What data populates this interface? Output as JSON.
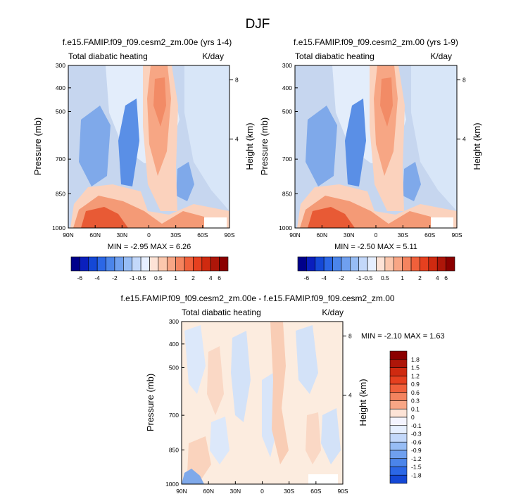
{
  "figure_title": "DJF",
  "colors": {
    "panel_bg": "#c6d6ef",
    "blues": [
      "#00008b",
      "#0a1fbd",
      "#1448d6",
      "#2b67e6",
      "#4b85ea",
      "#6fa0ef",
      "#97bdf5",
      "#c3d8fa",
      "#e6efff"
    ],
    "reds": [
      "#fde3d6",
      "#fbc7ad",
      "#f8a685",
      "#f4845f",
      "#f0603b",
      "#e6401f",
      "#cf2a10",
      "#ae1609",
      "#8b0000"
    ]
  },
  "chart_data": [
    {
      "type": "heatmap",
      "title": "f.e15.FAMIP.f09_f09.cesm2_zm.00e (yrs 1-4)",
      "left_label": "Total diabatic heating",
      "right_label": "K/day",
      "ylabel": "Pressure (mb)",
      "ylabel_right": "Height (km)",
      "x_ticks": [
        "90N",
        "60N",
        "30N",
        "0",
        "30S",
        "60S",
        "90S"
      ],
      "y_ticks": [
        "300",
        "400",
        "500",
        "700",
        "850",
        "1000"
      ],
      "y_right_ticks": [
        "8",
        "4"
      ],
      "min_max_text": "MIN =  -2.95   MAX =   6.26",
      "min": -2.95,
      "max": 6.26,
      "colorbar_labels": [
        "-6",
        "-4",
        "-2",
        "-1",
        "-0.5",
        "0.5",
        "1",
        "2",
        "4",
        "6"
      ]
    },
    {
      "type": "heatmap",
      "title": "f.e15.FAMIP.f09_f09.cesm2_zm.00 (yrs 1-9)",
      "left_label": "Total diabatic heating",
      "right_label": "K/day",
      "ylabel": "Pressure (mb)",
      "ylabel_right": "Height (km)",
      "x_ticks": [
        "90N",
        "60N",
        "30N",
        "0",
        "30S",
        "60S",
        "90S"
      ],
      "y_ticks": [
        "300",
        "400",
        "500",
        "700",
        "850",
        "1000"
      ],
      "y_right_ticks": [
        "8",
        "4"
      ],
      "min_max_text": "MIN =  -2.50   MAX =   5.11",
      "min": -2.5,
      "max": 5.11,
      "colorbar_labels": [
        "-6",
        "-4",
        "-2",
        "-1",
        "-0.5",
        "0.5",
        "1",
        "2",
        "4",
        "6"
      ]
    },
    {
      "type": "heatmap",
      "title": "f.e15.FAMIP.f09_f09.cesm2_zm.00e - f.e15.FAMIP.f09_f09.cesm2_zm.00",
      "left_label": "Total diabatic heating",
      "right_label": "K/day",
      "ylabel": "Pressure (mb)",
      "ylabel_right": "Height (km)",
      "x_ticks": [
        "90N",
        "60N",
        "30N",
        "0",
        "30S",
        "60S",
        "90S"
      ],
      "y_ticks": [
        "300",
        "400",
        "500",
        "700",
        "850",
        "1000"
      ],
      "y_right_ticks": [
        "8",
        "4"
      ],
      "min_max_text": "MIN =  -2.10   MAX =   1.63",
      "min": -2.1,
      "max": 1.63,
      "colorbar_labels": [
        "1.8",
        "1.5",
        "1.2",
        "0.9",
        "0.6",
        "0.3",
        "0.1",
        "0",
        "-0.1",
        "-0.3",
        "-0.6",
        "-0.9",
        "-1.2",
        "-1.5",
        "-1.8"
      ]
    }
  ]
}
